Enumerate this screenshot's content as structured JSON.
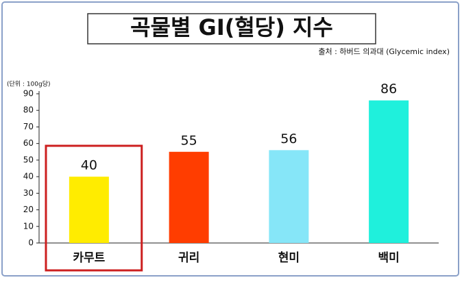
{
  "chart_data": {
    "type": "bar",
    "title": "곡물별 GI(혈당) 지수",
    "source": "출처 : 하버드 의과대 (Glycemic index)",
    "unit": "(단위 : 100g당)",
    "categories": [
      "카무트",
      "귀리",
      "현미",
      "백미"
    ],
    "values": [
      40,
      55,
      56,
      86
    ],
    "colors": [
      "#ffec00",
      "#ff3d00",
      "#86e6f8",
      "#1ff0dc"
    ],
    "ylim": [
      0,
      90
    ],
    "yticks": [
      0,
      10,
      20,
      30,
      40,
      50,
      60,
      70,
      80,
      90
    ]
  }
}
